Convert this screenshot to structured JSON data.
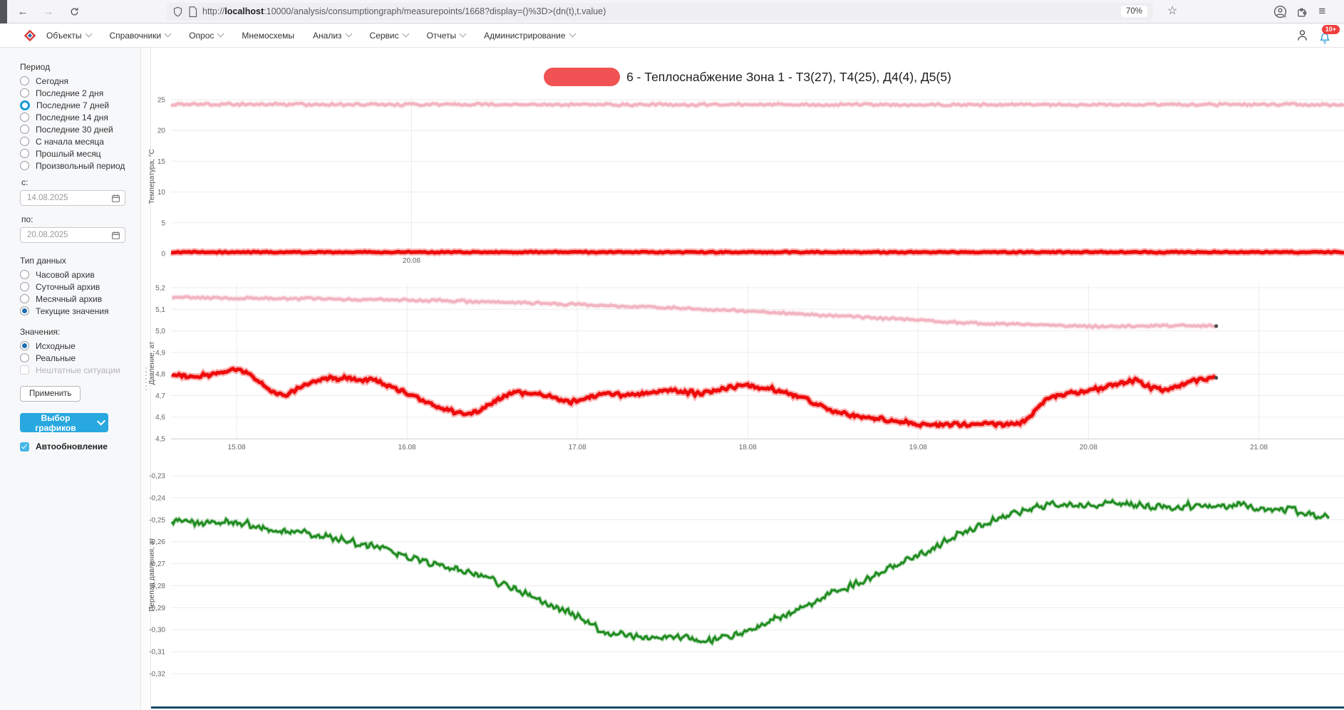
{
  "browser": {
    "url": {
      "scheme": "http://",
      "host": "localhost",
      "rest": ":10000/analysis/consumptiongraph/measurepoints/1668?display=()%3D>(dn(t),t.value)"
    },
    "zoom_level": "70%"
  },
  "icons": {
    "back": "←",
    "forward": "→",
    "star": "☆",
    "menu": "≡"
  },
  "nav": {
    "items": [
      {
        "label": "Объекты",
        "chevron": true
      },
      {
        "label": "Справочники",
        "chevron": true
      },
      {
        "label": "Опрос",
        "chevron": true
      },
      {
        "label": "Мнемосхемы",
        "chevron": false
      },
      {
        "label": "Анализ",
        "chevron": true
      },
      {
        "label": "Сервис",
        "chevron": true
      },
      {
        "label": "Отчеты",
        "chevron": true
      },
      {
        "label": "Администрирование",
        "chevron": true
      }
    ],
    "notification_badge": "10+"
  },
  "sidebar": {
    "period": {
      "label": "Период",
      "options": [
        "Сегодня",
        "Последние 2 дня",
        "Последние 7 дней",
        "Последние 14 дня",
        "Последние 30 дней",
        "С начала месяца",
        "Прошлый месяц",
        "Произвольный период"
      ],
      "selected_index": 2
    },
    "date_from": {
      "label": "с:",
      "value": "14.08.2025"
    },
    "date_to": {
      "label": "по:",
      "value": "20.08.2025"
    },
    "data_type": {
      "label": "Тип данных",
      "options": [
        "Часовой архив",
        "Суточный архив",
        "Месячный архив",
        "Текущие значения"
      ],
      "selected_index": 3
    },
    "values": {
      "label": "Значения:",
      "options": [
        "Исходные",
        "Реальные"
      ],
      "selected_index": 0,
      "disabled_checkbox": "Нештатные ситуации"
    },
    "apply_button": "Применить",
    "graphs_button": "Выбор графиков",
    "autoupdate_label": "Автообновление",
    "autoupdate_checked": true
  },
  "main": {
    "title": "6 - Теплоснабжение Зона 1 - Т3(27), Т4(25), Д4(4), Д5(5)"
  },
  "colors": {
    "accent_blue": "#29a8e0",
    "radio_blue": "#1f6db2",
    "ring_blue": "#189bd8",
    "checkbox_blue": "#45b6e8",
    "redaction_red": "#f15254",
    "bottom_edge_navy": "#1a4a6b",
    "badge_red": "#ef3e3e"
  },
  "chart_data": [
    {
      "type": "line",
      "name": "temperature-chart",
      "ylabel": "Температура, °C",
      "ylim": [
        0,
        25
      ],
      "y_ticks": [
        [
          0,
          "0"
        ],
        [
          5,
          "5"
        ],
        [
          10,
          "10"
        ],
        [
          15,
          "15"
        ],
        [
          20,
          "20"
        ],
        [
          25,
          "25"
        ]
      ],
      "xlim": [
        0,
        1
      ],
      "x_ticks": [
        [
          0.205,
          "20.08"
        ]
      ],
      "grid": true,
      "series": [
        {
          "name": "supply-temperature",
          "color": "#f2b3c1",
          "width": 4,
          "noise": 0.22,
          "points": [
            [
              0,
              24.25
            ],
            [
              0.3,
              24.2
            ],
            [
              0.6,
              24.2
            ],
            [
              1,
              24.22
            ]
          ]
        },
        {
          "name": "return-temperature",
          "color": "#ee0b0b",
          "width": 5,
          "noise": 0.13,
          "points": [
            [
              0,
              0.22
            ],
            [
              1,
              0.22
            ]
          ]
        }
      ]
    },
    {
      "type": "line",
      "name": "pressure-chart",
      "ylabel": "Давление, ат",
      "ylim": [
        4.5,
        5.2
      ],
      "y_ticks": [
        [
          4.5,
          "4,5"
        ],
        [
          4.6,
          "4,6"
        ],
        [
          4.7,
          "4,7"
        ],
        [
          4.8,
          "4,8"
        ],
        [
          4.9,
          "4,9"
        ],
        [
          5.0,
          "5,0"
        ],
        [
          5.1,
          "5,1"
        ],
        [
          5.2,
          "5,2"
        ]
      ],
      "xlim": [
        14.615,
        21.5
      ],
      "x_ticks": [
        [
          15,
          "15.08"
        ],
        [
          16,
          "16.08"
        ],
        [
          17,
          "17.08"
        ],
        [
          18,
          "18.08"
        ],
        [
          19,
          "19.08"
        ],
        [
          20,
          "20.08"
        ],
        [
          21,
          "21.08"
        ]
      ],
      "grid": true,
      "series": [
        {
          "name": "supply-pressure",
          "color": "#f2b3c1",
          "width": 4,
          "noise": 0.006,
          "end_dot": true,
          "points": [
            [
              14.62,
              5.155
            ],
            [
              15.0,
              5.152
            ],
            [
              15.4,
              5.15
            ],
            [
              15.8,
              5.145
            ],
            [
              16.2,
              5.14
            ],
            [
              16.6,
              5.132
            ],
            [
              17.0,
              5.122
            ],
            [
              17.3,
              5.112
            ],
            [
              17.6,
              5.105
            ],
            [
              17.9,
              5.095
            ],
            [
              18.2,
              5.082
            ],
            [
              18.5,
              5.07
            ],
            [
              18.8,
              5.058
            ],
            [
              19.0,
              5.05
            ],
            [
              19.2,
              5.04
            ],
            [
              19.45,
              5.032
            ],
            [
              19.7,
              5.028
            ],
            [
              19.9,
              5.022
            ],
            [
              20.1,
              5.02
            ],
            [
              20.35,
              5.022
            ],
            [
              20.6,
              5.024
            ],
            [
              20.75,
              5.022
            ]
          ]
        },
        {
          "name": "return-pressure",
          "color": "#ee0b0b",
          "width": 5,
          "noise": 0.012,
          "end_dot": true,
          "points": [
            [
              14.62,
              4.803
            ],
            [
              14.72,
              4.79
            ],
            [
              14.82,
              4.795
            ],
            [
              14.92,
              4.81
            ],
            [
              15.0,
              4.818
            ],
            [
              15.08,
              4.8
            ],
            [
              15.16,
              4.745
            ],
            [
              15.24,
              4.7
            ],
            [
              15.3,
              4.7
            ],
            [
              15.38,
              4.745
            ],
            [
              15.46,
              4.772
            ],
            [
              15.56,
              4.78
            ],
            [
              15.68,
              4.778
            ],
            [
              15.8,
              4.768
            ],
            [
              15.9,
              4.745
            ],
            [
              16.0,
              4.71
            ],
            [
              16.1,
              4.672
            ],
            [
              16.2,
              4.64
            ],
            [
              16.3,
              4.618
            ],
            [
              16.38,
              4.615
            ],
            [
              16.46,
              4.64
            ],
            [
              16.54,
              4.69
            ],
            [
              16.62,
              4.712
            ],
            [
              16.72,
              4.713
            ],
            [
              16.8,
              4.705
            ],
            [
              16.88,
              4.682
            ],
            [
              16.96,
              4.668
            ],
            [
              17.04,
              4.685
            ],
            [
              17.12,
              4.705
            ],
            [
              17.22,
              4.707
            ],
            [
              17.32,
              4.7
            ],
            [
              17.42,
              4.715
            ],
            [
              17.52,
              4.728
            ],
            [
              17.62,
              4.718
            ],
            [
              17.72,
              4.708
            ],
            [
              17.82,
              4.72
            ],
            [
              17.92,
              4.74
            ],
            [
              18.0,
              4.745
            ],
            [
              18.1,
              4.738
            ],
            [
              18.2,
              4.72
            ],
            [
              18.3,
              4.695
            ],
            [
              18.4,
              4.661
            ],
            [
              18.5,
              4.628
            ],
            [
              18.6,
              4.61
            ],
            [
              18.7,
              4.6
            ],
            [
              18.8,
              4.588
            ],
            [
              18.9,
              4.578
            ],
            [
              19.0,
              4.568
            ],
            [
              19.1,
              4.562
            ],
            [
              19.2,
              4.563
            ],
            [
              19.3,
              4.568
            ],
            [
              19.4,
              4.572
            ],
            [
              19.5,
              4.568
            ],
            [
              19.58,
              4.565
            ],
            [
              19.66,
              4.6
            ],
            [
              19.74,
              4.67
            ],
            [
              19.8,
              4.7
            ],
            [
              19.9,
              4.715
            ],
            [
              20.0,
              4.722
            ],
            [
              20.1,
              4.738
            ],
            [
              20.2,
              4.762
            ],
            [
              20.28,
              4.77
            ],
            [
              20.36,
              4.74
            ],
            [
              20.44,
              4.72
            ],
            [
              20.52,
              4.744
            ],
            [
              20.6,
              4.77
            ],
            [
              20.68,
              4.78
            ],
            [
              20.75,
              4.782
            ]
          ]
        }
      ]
    },
    {
      "type": "line",
      "name": "pressure-drop-chart",
      "ylabel": "Перепад давления, ат",
      "ylim": [
        -0.32,
        -0.23
      ],
      "y_ticks": [
        [
          -0.23,
          "-0,23"
        ],
        [
          -0.24,
          "-0,24"
        ],
        [
          -0.25,
          "-0,25"
        ],
        [
          -0.26,
          "-0,26"
        ],
        [
          -0.27,
          "-0,27"
        ],
        [
          -0.28,
          "-0,28"
        ],
        [
          -0.29,
          "-0,29"
        ],
        [
          -0.3,
          "-0,30"
        ],
        [
          -0.31,
          "-0,31"
        ],
        [
          -0.32,
          "-0,32"
        ]
      ],
      "xlim": [
        14.615,
        21.5
      ],
      "x_ticks": [],
      "grid": true,
      "series": [
        {
          "name": "pressure-drop",
          "color": "#1e8b1f",
          "width": 3,
          "noise": 0.002,
          "points": [
            [
              14.62,
              -0.25
            ],
            [
              14.8,
              -0.2515
            ],
            [
              15.0,
              -0.251
            ],
            [
              15.15,
              -0.2535
            ],
            [
              15.3,
              -0.255
            ],
            [
              15.5,
              -0.2575
            ],
            [
              15.7,
              -0.2605
            ],
            [
              15.9,
              -0.264
            ],
            [
              16.1,
              -0.2685
            ],
            [
              16.3,
              -0.2725
            ],
            [
              16.5,
              -0.2775
            ],
            [
              16.7,
              -0.2835
            ],
            [
              16.85,
              -0.2885
            ],
            [
              17.0,
              -0.294
            ],
            [
              17.1,
              -0.2985
            ],
            [
              17.2,
              -0.302
            ],
            [
              17.35,
              -0.3025
            ],
            [
              17.5,
              -0.3035
            ],
            [
              17.65,
              -0.304
            ],
            [
              17.78,
              -0.3055
            ],
            [
              17.9,
              -0.3035
            ],
            [
              18.0,
              -0.3005
            ],
            [
              18.1,
              -0.2975
            ],
            [
              18.2,
              -0.2935
            ],
            [
              18.35,
              -0.2885
            ],
            [
              18.5,
              -0.2835
            ],
            [
              18.65,
              -0.2785
            ],
            [
              18.8,
              -0.2735
            ],
            [
              18.95,
              -0.268
            ],
            [
              19.1,
              -0.2625
            ],
            [
              19.25,
              -0.2565
            ],
            [
              19.4,
              -0.2515
            ],
            [
              19.55,
              -0.2475
            ],
            [
              19.7,
              -0.2445
            ],
            [
              19.85,
              -0.2425
            ],
            [
              20.0,
              -0.2435
            ],
            [
              20.15,
              -0.2425
            ],
            [
              20.3,
              -0.2435
            ],
            [
              20.45,
              -0.2445
            ],
            [
              20.6,
              -0.2435
            ],
            [
              20.75,
              -0.2445
            ],
            [
              20.9,
              -0.2435
            ],
            [
              21.05,
              -0.246
            ],
            [
              21.2,
              -0.2455
            ],
            [
              21.32,
              -0.2475
            ],
            [
              21.42,
              -0.25
            ]
          ]
        }
      ]
    }
  ]
}
